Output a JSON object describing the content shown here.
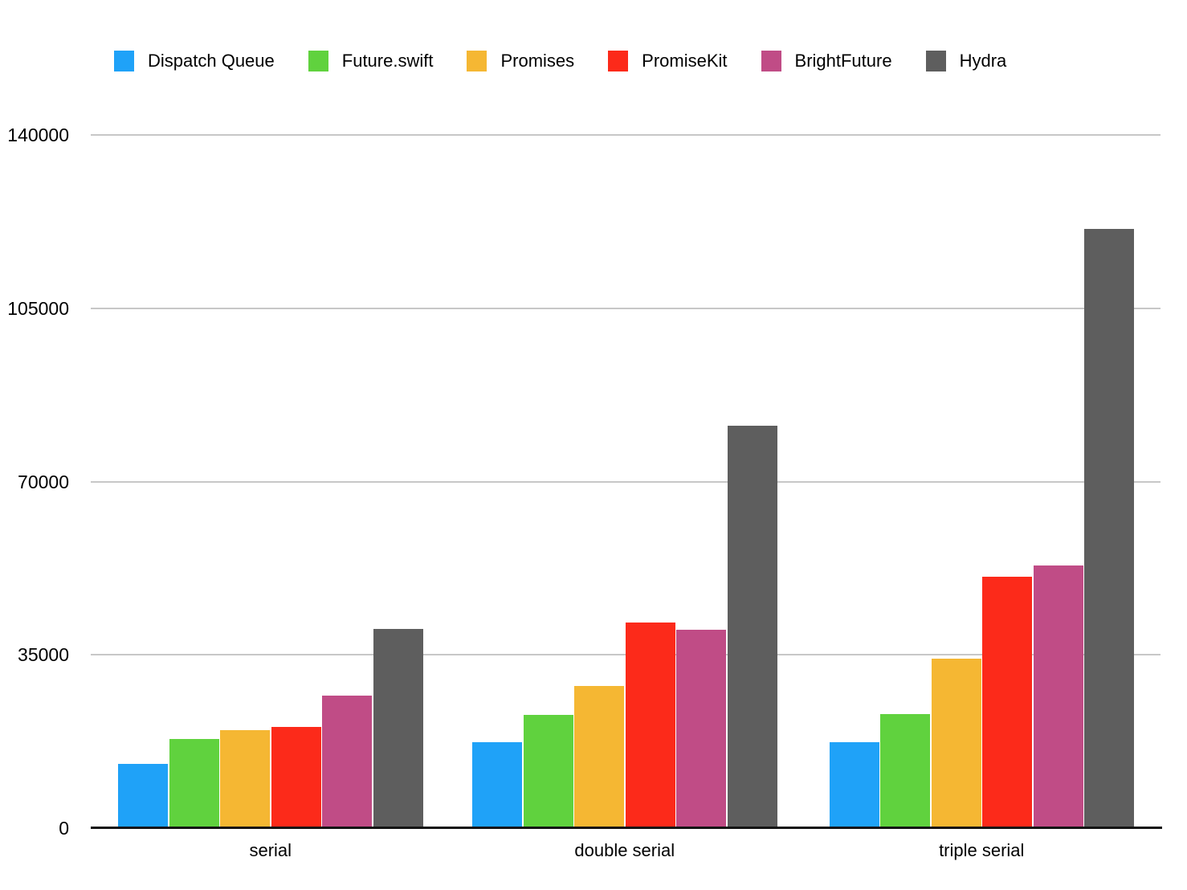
{
  "chart_data": {
    "type": "bar",
    "categories": [
      "serial",
      "double serial",
      "triple serial"
    ],
    "series": [
      {
        "name": "Dispatch Queue",
        "color": "#1FA2F8",
        "values": [
          13000,
          17300,
          17400
        ]
      },
      {
        "name": "Future.swift",
        "color": "#60D23E",
        "values": [
          18000,
          22900,
          23000
        ]
      },
      {
        "name": "Promises",
        "color": "#F5B733",
        "values": [
          19800,
          28700,
          34300
        ]
      },
      {
        "name": "PromiseKit",
        "color": "#FC2A1A",
        "values": [
          20500,
          41600,
          50700
        ]
      },
      {
        "name": "BrightFuture",
        "color": "#C04C86",
        "values": [
          26700,
          40100,
          53100
        ]
      },
      {
        "name": "Hydra",
        "color": "#5E5E5E",
        "values": [
          40300,
          81200,
          121000
        ]
      }
    ],
    "y_ticks": [
      0,
      35000,
      70000,
      105000,
      140000
    ],
    "ylim": [
      0,
      140000
    ],
    "grid": true,
    "legend_position": "top",
    "xlabel": "",
    "ylabel": "",
    "colors": {
      "gridline": "#C7C7C7",
      "axis": "#141414",
      "text": "#000000",
      "background": "#FFFFFF"
    }
  }
}
